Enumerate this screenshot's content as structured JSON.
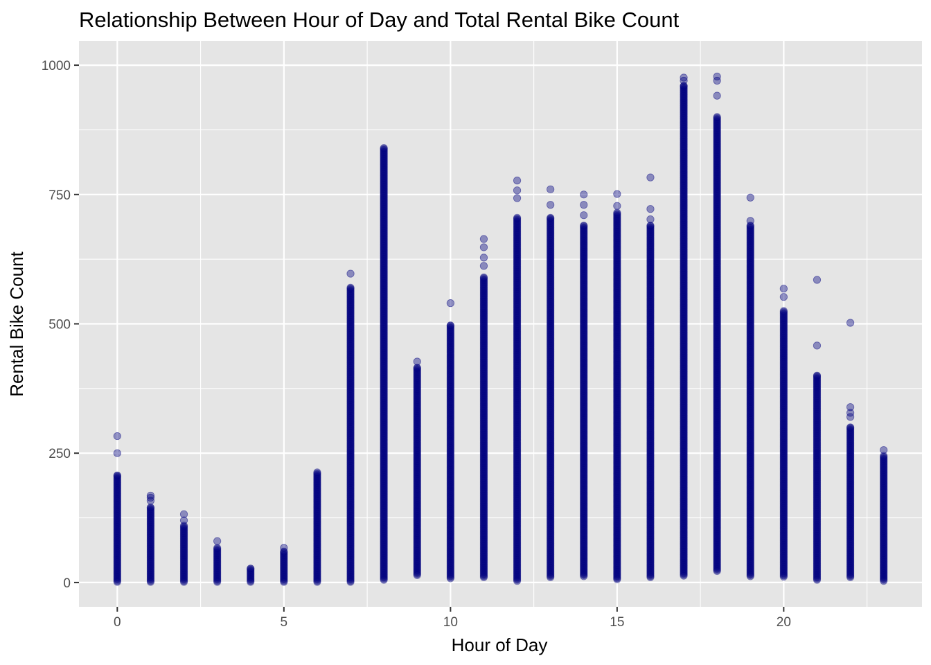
{
  "chart_data": {
    "type": "scatter",
    "title": "Relationship Between Hour of Day and Total Rental Bike Count",
    "xlabel": "Hour of Day",
    "ylabel": "Rental Bike Count",
    "xlim": [
      -1.15,
      24.15
    ],
    "ylim": [
      -47,
      1047
    ],
    "x_ticks": [
      0,
      5,
      10,
      15,
      20
    ],
    "x_tick_labels": [
      "0",
      "5",
      "10",
      "15",
      "20"
    ],
    "y_ticks": [
      0,
      250,
      500,
      750,
      1000
    ],
    "y_tick_labels": [
      "0",
      "250",
      "500",
      "750",
      "1000"
    ],
    "grid": true,
    "panel_background": "#e5e5e5",
    "grid_color": "#ffffff",
    "point_color": "#00007f",
    "point_opacity": 0.4,
    "series": [
      {
        "x": 0,
        "range": [
          1,
          207
        ],
        "outliers": [
          250,
          283
        ]
      },
      {
        "x": 1,
        "range": [
          1,
          145
        ],
        "outliers": [
          158,
          164,
          168
        ]
      },
      {
        "x": 2,
        "range": [
          1,
          110
        ],
        "outliers": [
          120,
          132
        ]
      },
      {
        "x": 3,
        "range": [
          1,
          67
        ],
        "outliers": [
          80
        ]
      },
      {
        "x": 4,
        "range": [
          1,
          27
        ],
        "outliers": []
      },
      {
        "x": 5,
        "range": [
          1,
          60
        ],
        "outliers": [
          67
        ]
      },
      {
        "x": 6,
        "range": [
          1,
          213
        ],
        "outliers": []
      },
      {
        "x": 7,
        "range": [
          1,
          570
        ],
        "outliers": [
          597
        ]
      },
      {
        "x": 8,
        "range": [
          5,
          840
        ],
        "outliers": []
      },
      {
        "x": 9,
        "range": [
          14,
          415
        ],
        "outliers": [
          427
        ]
      },
      {
        "x": 10,
        "range": [
          8,
          497
        ],
        "outliers": [
          540
        ]
      },
      {
        "x": 11,
        "range": [
          10,
          590
        ],
        "outliers": [
          612,
          628,
          648,
          664
        ]
      },
      {
        "x": 12,
        "range": [
          3,
          705
        ],
        "outliers": [
          743,
          758,
          777
        ]
      },
      {
        "x": 13,
        "range": [
          10,
          705
        ],
        "outliers": [
          730,
          760
        ]
      },
      {
        "x": 14,
        "range": [
          12,
          690
        ],
        "outliers": [
          710,
          730,
          750
        ]
      },
      {
        "x": 15,
        "range": [
          6,
          715
        ],
        "outliers": [
          728,
          751
        ]
      },
      {
        "x": 16,
        "range": [
          10,
          690
        ],
        "outliers": [
          702,
          722,
          783
        ]
      },
      {
        "x": 17,
        "range": [
          13,
          960
        ],
        "outliers": [
          970,
          976
        ]
      },
      {
        "x": 18,
        "range": [
          22,
          900
        ],
        "outliers": [
          941,
          970,
          978
        ]
      },
      {
        "x": 19,
        "range": [
          12,
          690
        ],
        "outliers": [
          699,
          744
        ]
      },
      {
        "x": 20,
        "range": [
          11,
          525
        ],
        "outliers": [
          552,
          568
        ]
      },
      {
        "x": 21,
        "range": [
          5,
          400
        ],
        "outliers": [
          458,
          585
        ]
      },
      {
        "x": 22,
        "range": [
          10,
          300
        ],
        "outliers": [
          320,
          328,
          339,
          502
        ]
      },
      {
        "x": 23,
        "range": [
          3,
          245
        ],
        "outliers": [
          256
        ]
      }
    ]
  }
}
